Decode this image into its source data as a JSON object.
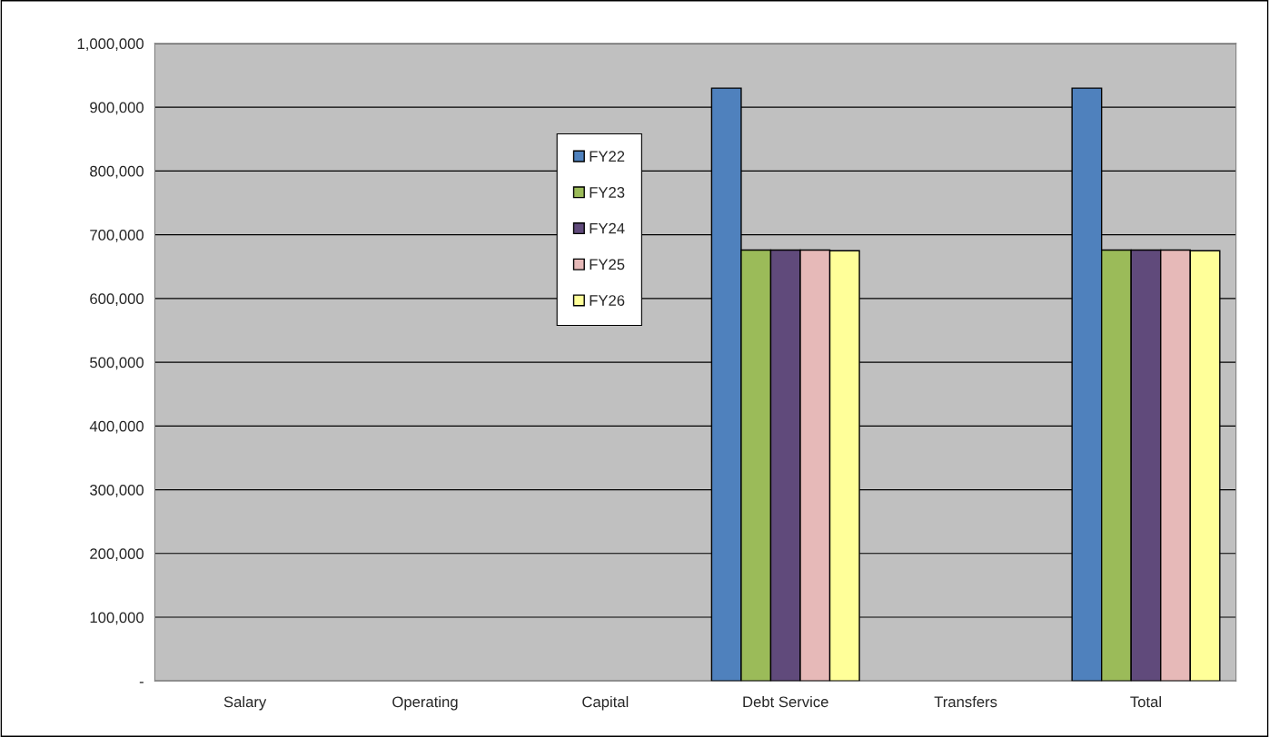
{
  "chart_data": {
    "type": "bar",
    "categories": [
      "Salary",
      "Operating",
      "Capital",
      "Debt Service",
      "Transfers",
      "Total"
    ],
    "series": [
      {
        "name": "FY22",
        "color": "#4f81bd",
        "values": [
          null,
          null,
          null,
          930000,
          null,
          930000
        ]
      },
      {
        "name": "FY23",
        "color": "#9bbb59",
        "values": [
          null,
          null,
          null,
          676000,
          null,
          676000
        ]
      },
      {
        "name": "FY24",
        "color": "#604a7b",
        "values": [
          null,
          null,
          null,
          676000,
          null,
          676000
        ]
      },
      {
        "name": "FY25",
        "color": "#e6b9b8",
        "values": [
          null,
          null,
          null,
          676000,
          null,
          676000
        ]
      },
      {
        "name": "FY26",
        "color": "#ffff99",
        "values": [
          null,
          null,
          null,
          675000,
          null,
          675000
        ]
      }
    ],
    "ylim": [
      0,
      1000000
    ],
    "yticks": [
      {
        "value": 0,
        "label": "-"
      },
      {
        "value": 100000,
        "label": "100,000"
      },
      {
        "value": 200000,
        "label": "200,000"
      },
      {
        "value": 300000,
        "label": "300,000"
      },
      {
        "value": 400000,
        "label": "400,000"
      },
      {
        "value": 500000,
        "label": "500,000"
      },
      {
        "value": 600000,
        "label": "600,000"
      },
      {
        "value": 700000,
        "label": "700,000"
      },
      {
        "value": 800000,
        "label": "800,000"
      },
      {
        "value": 900000,
        "label": "900,000"
      },
      {
        "value": 1000000,
        "label": "1,000,000"
      }
    ],
    "grid": "y",
    "legend": "top"
  }
}
